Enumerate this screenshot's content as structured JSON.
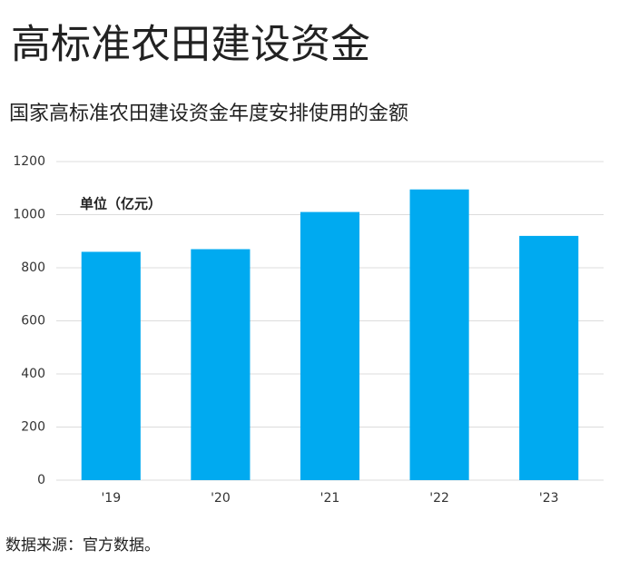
{
  "chart_data": {
    "type": "bar",
    "title": "高标准农田建设资金",
    "subtitle": "国家高标准农田建设资金年度安排使用的金额",
    "annotation": "单位（亿元）",
    "source": "数据来源：官方数据。",
    "categories": [
      "'19",
      "'20",
      "'21",
      "'22",
      "'23"
    ],
    "values": [
      860,
      870,
      1010,
      1095,
      920
    ],
    "color": "#00aaf0",
    "ylim": [
      0,
      1200
    ],
    "yticks": [
      0,
      200,
      400,
      600,
      800,
      1000,
      1200
    ],
    "grid": true
  }
}
